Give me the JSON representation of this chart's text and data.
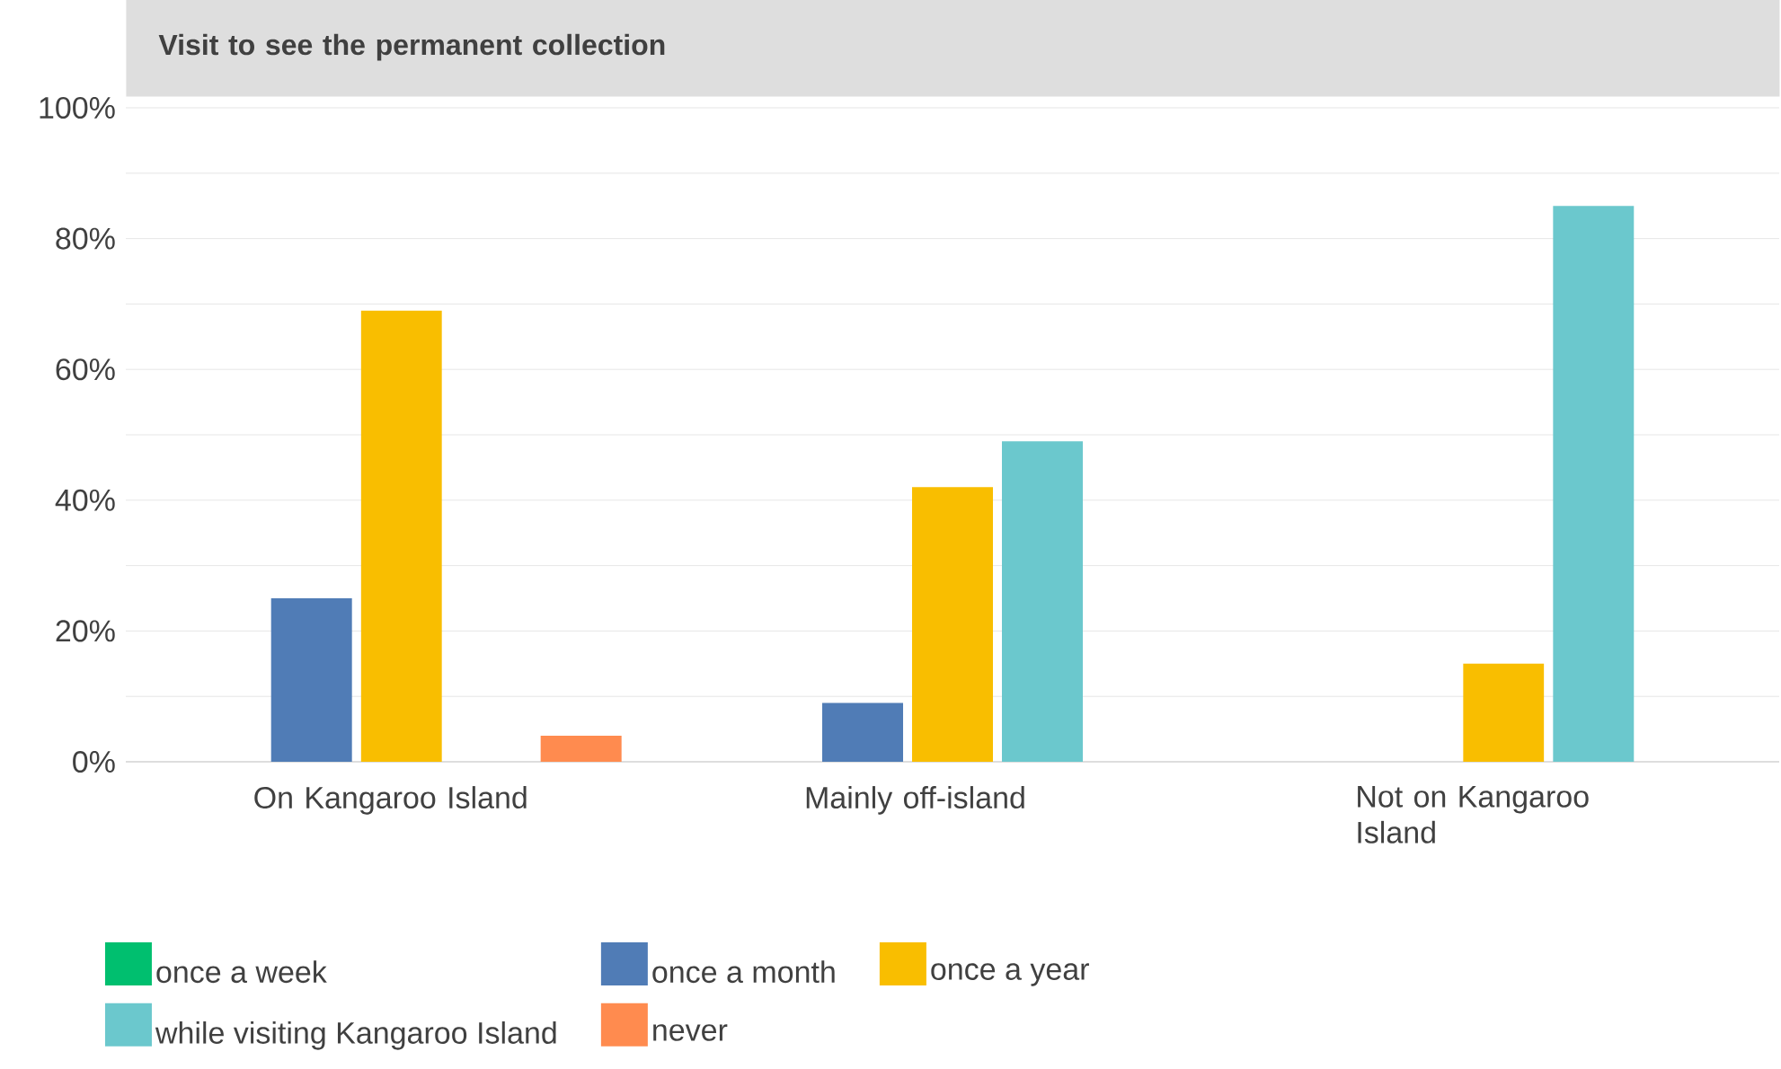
{
  "chart_data": {
    "type": "bar",
    "title": "Visit to see the permanent collection",
    "categories": [
      "On Kangaroo Island",
      "Mainly off-island",
      "Not on Kangaroo Island"
    ],
    "series": [
      {
        "name": "once a week",
        "color": "#00bf6f",
        "values": [
          0,
          0,
          0
        ]
      },
      {
        "name": "once a month",
        "color": "#507cb6",
        "values": [
          25,
          9,
          0
        ]
      },
      {
        "name": "once a year",
        "color": "#f9be00",
        "values": [
          69,
          42,
          15
        ]
      },
      {
        "name": "while visiting Kangaroo Island",
        "color": "#6bc8cd",
        "values": [
          0,
          49,
          85
        ]
      },
      {
        "name": "never",
        "color": "#ff8b4f",
        "values": [
          4,
          0,
          0
        ]
      }
    ],
    "ylim": [
      0,
      100
    ],
    "yticks": [
      {
        "value": 0,
        "label": "0%"
      },
      {
        "value": 10,
        "label": null
      },
      {
        "value": 20,
        "label": "20%"
      },
      {
        "value": 30,
        "label": null
      },
      {
        "value": 40,
        "label": "40%"
      },
      {
        "value": 50,
        "label": null
      },
      {
        "value": 60,
        "label": "60%"
      },
      {
        "value": 70,
        "label": null
      },
      {
        "value": 80,
        "label": "80%"
      },
      {
        "value": 90,
        "label": null
      },
      {
        "value": 100,
        "label": "100%"
      }
    ],
    "grid": "y",
    "legend": "bottom"
  }
}
